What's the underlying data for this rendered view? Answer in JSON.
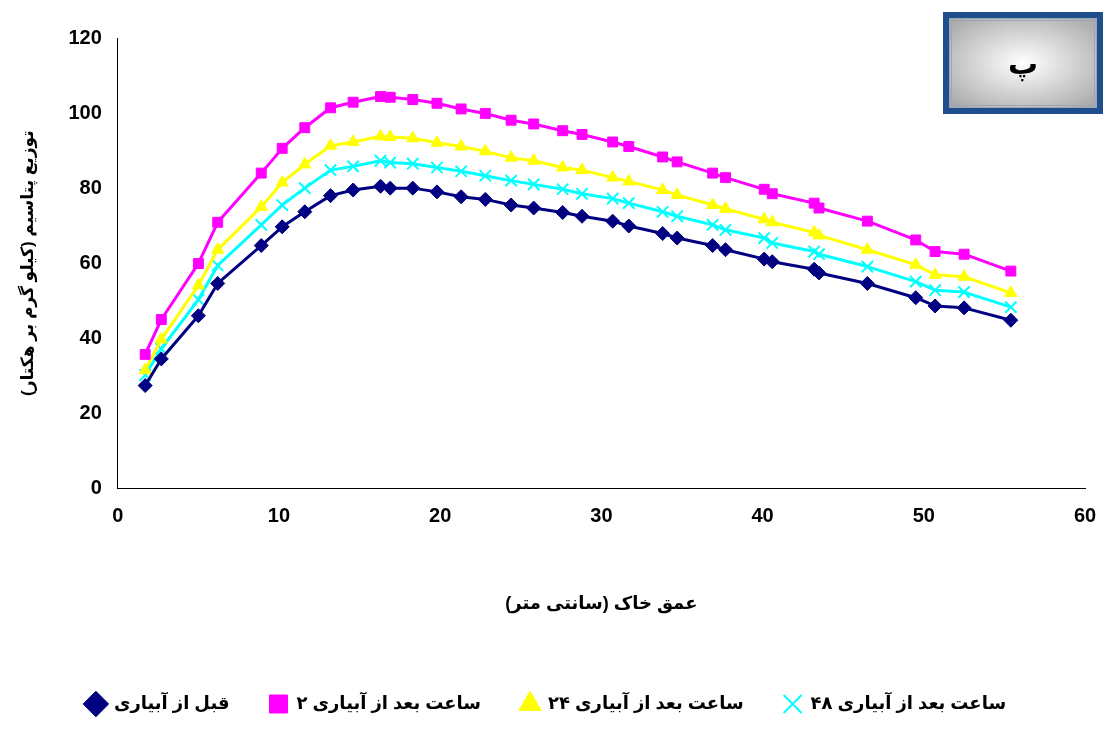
{
  "chart_data": {
    "type": "line",
    "xlabel": "عمق خاک (سانتی متر)",
    "ylabel": "توزیع پتاسیم (کیلو گرم بر هکتار)",
    "annotations": [
      "پ"
    ],
    "x": [
      1.7,
      2.7,
      5.0,
      6.2,
      8.9,
      10.2,
      11.6,
      13.2,
      14.6,
      16.3,
      16.9,
      18.3,
      19.8,
      21.3,
      22.8,
      24.4,
      25.8,
      27.6,
      28.8,
      30.7,
      31.7,
      33.8,
      34.7,
      36.9,
      37.7,
      40.1,
      40.6,
      43.2,
      43.5,
      46.5,
      49.5,
      50.7,
      52.5,
      55.4
    ],
    "xlim": [
      0,
      60
    ],
    "xticks": [
      0,
      10,
      20,
      30,
      40,
      50,
      60
    ],
    "ylim": [
      0,
      120
    ],
    "yticks": [
      0,
      20,
      40,
      60,
      80,
      100,
      120
    ],
    "grid": false,
    "legend": "bottom",
    "line_style": "solid",
    "series": [
      {
        "name": "قبل از آبیاری",
        "color": "#000080",
        "marker": "diamond",
        "values": [
          27.4,
          34.5,
          46.0,
          54.6,
          64.7,
          69.7,
          73.7,
          78.0,
          79.5,
          80.5,
          80.0,
          80.0,
          79.0,
          77.7,
          77.0,
          75.5,
          74.7,
          73.5,
          72.5,
          71.2,
          69.9,
          67.9,
          66.7,
          64.7,
          63.6,
          61.1,
          60.4,
          58.4,
          57.4,
          54.6,
          50.8,
          48.6,
          48.1,
          44.8
        ]
      },
      {
        "name": "۲ ساعت بعد از آبیاری",
        "color": "#ff00ff",
        "marker": "square",
        "values": [
          35.7,
          45.0,
          59.9,
          70.9,
          84.0,
          90.6,
          96.1,
          101.4,
          102.9,
          104.4,
          104.2,
          103.6,
          102.6,
          101.1,
          99.9,
          98.1,
          97.1,
          95.3,
          94.3,
          92.3,
          91.1,
          88.3,
          87.0,
          84.0,
          82.8,
          79.7,
          78.5,
          76.0,
          74.7,
          71.2,
          66.2,
          63.1,
          62.4,
          57.9
        ]
      },
      {
        "name": "۲۴ ساعت بعد از آبیاری",
        "color": "#ffff00",
        "marker": "triangle",
        "values": [
          31.5,
          39.7,
          54.1,
          63.6,
          75.0,
          81.5,
          86.3,
          91.3,
          92.3,
          93.8,
          93.6,
          93.3,
          92.1,
          91.1,
          89.8,
          88.1,
          87.3,
          85.5,
          84.8,
          82.8,
          81.8,
          79.5,
          78.2,
          75.5,
          74.5,
          71.7,
          70.9,
          68.2,
          67.4,
          63.6,
          59.6,
          56.9,
          56.4,
          52.1
        ]
      },
      {
        "name": "۴۸ ساعت بعد از آبیاری",
        "color": "#00ffff",
        "marker": "cross",
        "values": [
          30.2,
          37.2,
          50.3,
          59.4,
          70.2,
          75.5,
          80.0,
          84.8,
          85.8,
          87.3,
          86.8,
          86.5,
          85.5,
          84.5,
          83.3,
          82.0,
          81.0,
          79.7,
          78.5,
          77.2,
          76.0,
          73.7,
          72.5,
          70.2,
          68.9,
          66.7,
          65.4,
          63.1,
          62.4,
          59.1,
          55.1,
          52.8,
          52.3,
          48.3
        ]
      }
    ]
  }
}
